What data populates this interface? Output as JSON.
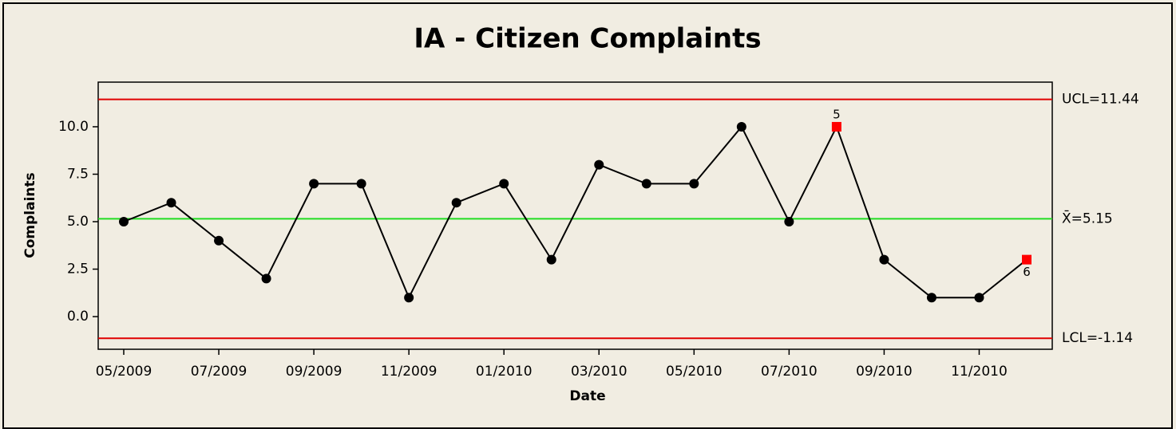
{
  "chart_data": {
    "type": "control",
    "title": "IA - Citizen Complaints",
    "xlabel": "Date",
    "ylabel": "Complaints",
    "categories": [
      "05/2009",
      null,
      "07/2009",
      null,
      "09/2009",
      null,
      "11/2009",
      null,
      "01/2010",
      null,
      "03/2010",
      null,
      "05/2010",
      null,
      "07/2010",
      null,
      "09/2010",
      null,
      "11/2010",
      null
    ],
    "values": [
      5,
      6,
      4,
      2,
      7,
      7,
      1,
      6,
      7,
      3,
      8,
      7,
      7,
      10,
      5,
      10,
      3,
      1,
      1,
      3
    ],
    "point_labels": [
      null,
      null,
      null,
      null,
      null,
      null,
      null,
      null,
      null,
      null,
      null,
      null,
      null,
      null,
      null,
      "5",
      null,
      null,
      null,
      "6"
    ],
    "color": "#000000",
    "flag_color": "#ff0000",
    "control_lines": [
      {
        "value": 11.44,
        "label": "UCL=11.44",
        "color": "#e00000"
      },
      {
        "value": 5.15,
        "label": "X̄=5.15",
        "color": "#22dd22"
      },
      {
        "value": -1.14,
        "label": "LCL=-1.14",
        "color": "#e00000"
      }
    ],
    "ylim": [
      -1.72,
      12.35
    ],
    "yticks": [
      {
        "value": 0,
        "label": "0.0"
      },
      2.5,
      {
        "value": 5,
        "label": "5.0"
      },
      7.5,
      {
        "value": 10,
        "label": "10.0"
      }
    ]
  }
}
